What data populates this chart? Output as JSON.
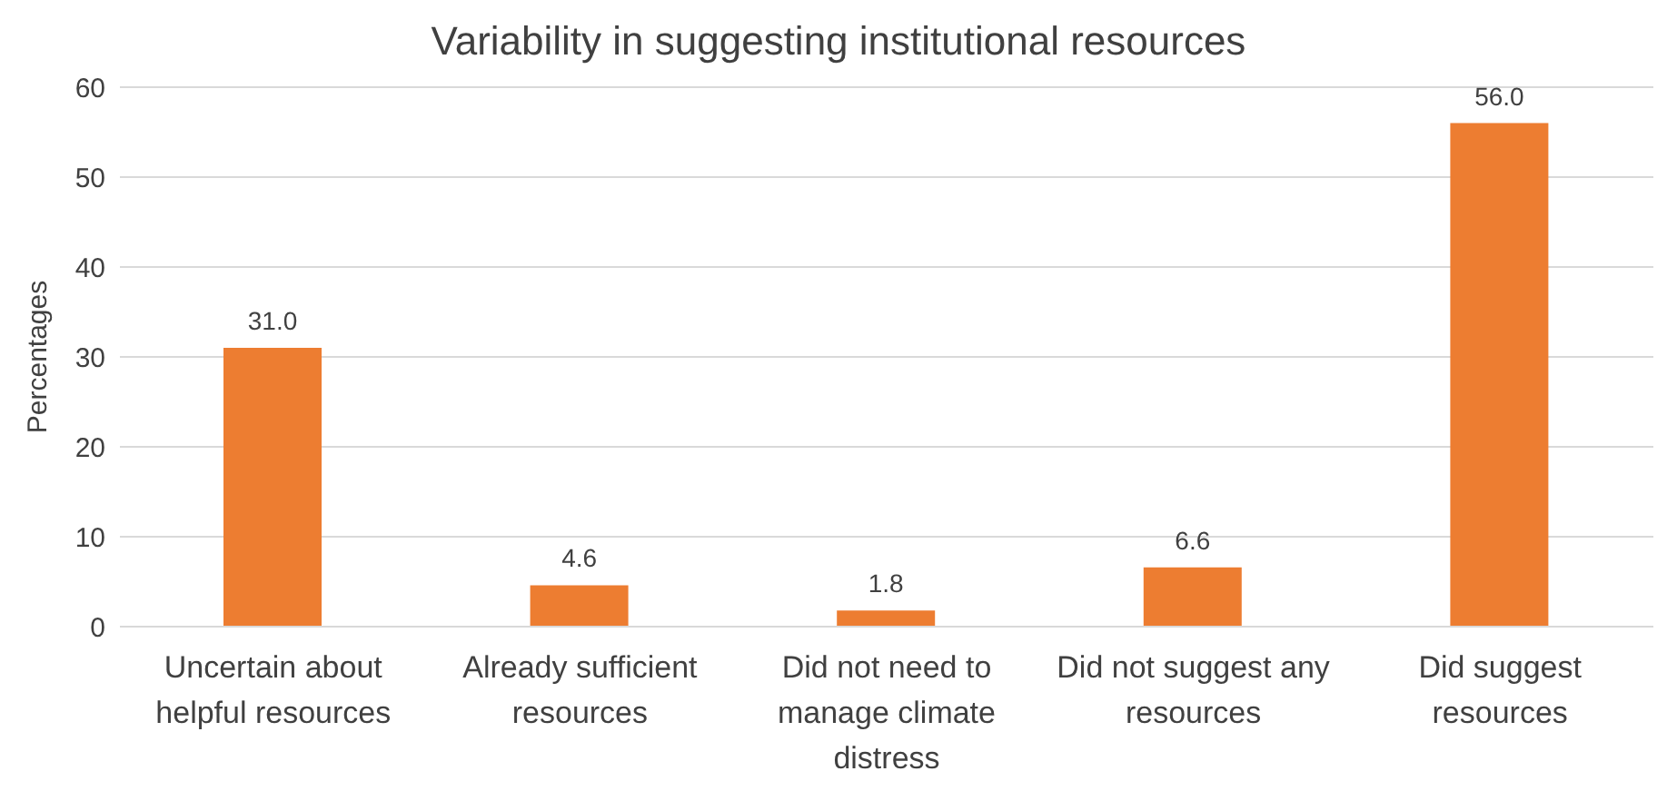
{
  "chart_data": {
    "type": "bar",
    "title": "Variability in suggesting institutional resources",
    "ylabel": "Percentages",
    "categories": [
      "Uncertain about helpful resources",
      "Already sufficient resources",
      "Did not need to manage climate distress",
      "Did not suggest any resources",
      "Did suggest resources"
    ],
    "values": [
      31.0,
      4.6,
      1.8,
      6.6,
      56.0
    ],
    "color": "#ed7d31",
    "ylim": [
      0,
      60
    ],
    "yticks": [
      0,
      10,
      20,
      30,
      40,
      50,
      60
    ],
    "grid": "y",
    "value_labels": [
      "31.0",
      "4.6",
      "1.8",
      "6.6",
      "56.0"
    ]
  }
}
